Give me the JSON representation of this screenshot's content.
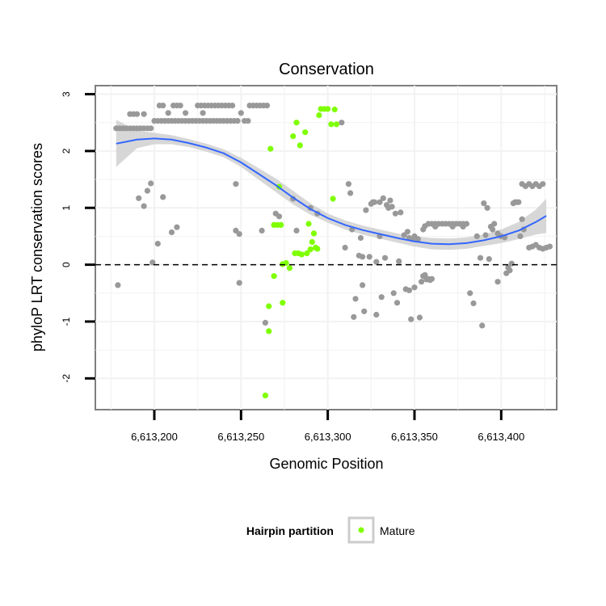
{
  "chart_data": {
    "type": "scatter",
    "title": "Conservation",
    "xlabel": "Genomic Position",
    "ylabel": "phyloP LRT conservation scores",
    "xlim": [
      6613166,
      6613432
    ],
    "ylim": [
      -2.55,
      3.15
    ],
    "x_ticks": [
      6613200,
      6613250,
      6613300,
      6613350,
      6613400
    ],
    "x_tick_labels": [
      "6,613,200",
      "6,613,250",
      "6,613,300",
      "6,613,350",
      "6,613,400"
    ],
    "y_ticks": [
      -2,
      -1,
      0,
      1,
      2,
      3
    ],
    "y_tick_labels": [
      "-2",
      "-1",
      "0",
      "1",
      "2",
      "3"
    ],
    "grid": true,
    "reference_line": {
      "y": 0,
      "style": "dashed",
      "color": "#000000"
    },
    "colors": {
      "other": "#999999",
      "mature": "#7fff00",
      "smooth": "#3366ff",
      "band": "#d3d3d3",
      "panel_border": "#7f7f7f",
      "grid": "#f2f2f2"
    },
    "legend": {
      "title": "Hairpin partition",
      "position": "bottom",
      "entries": [
        {
          "label": "Mature",
          "color": "#7fff00"
        }
      ]
    },
    "smooth": {
      "x": [
        6613178,
        6613190,
        6613200,
        6613210,
        6613220,
        6613230,
        6613240,
        6613250,
        6613260,
        6613270,
        6613280,
        6613290,
        6613300,
        6613310,
        6613320,
        6613330,
        6613340,
        6613350,
        6613360,
        6613370,
        6613380,
        6613390,
        6613400,
        6613410,
        6613420,
        6613426
      ],
      "y": [
        2.13,
        2.2,
        2.22,
        2.2,
        2.14,
        2.06,
        1.96,
        1.8,
        1.6,
        1.4,
        1.18,
        0.98,
        0.82,
        0.7,
        0.61,
        0.54,
        0.47,
        0.41,
        0.37,
        0.36,
        0.38,
        0.43,
        0.5,
        0.6,
        0.75,
        0.86
      ],
      "lower": [
        1.72,
        2.05,
        2.12,
        2.12,
        2.07,
        1.99,
        1.89,
        1.72,
        1.5,
        1.28,
        1.06,
        0.88,
        0.74,
        0.62,
        0.53,
        0.46,
        0.39,
        0.32,
        0.27,
        0.26,
        0.28,
        0.33,
        0.38,
        0.45,
        0.53,
        0.56
      ],
      "upper": [
        2.55,
        2.36,
        2.32,
        2.28,
        2.21,
        2.13,
        2.03,
        1.88,
        1.7,
        1.52,
        1.3,
        1.08,
        0.9,
        0.78,
        0.69,
        0.62,
        0.55,
        0.5,
        0.47,
        0.46,
        0.48,
        0.53,
        0.62,
        0.75,
        0.97,
        1.16
      ]
    },
    "series": [
      {
        "name": "",
        "color": "#999999",
        "points": [
          [
            6613178,
            2.4
          ],
          [
            6613180,
            2.4
          ],
          [
            6613182,
            2.4
          ],
          [
            6613184,
            2.4
          ],
          [
            6613186,
            2.4
          ],
          [
            6613188,
            2.4
          ],
          [
            6613190,
            2.4
          ],
          [
            6613192,
            2.4
          ],
          [
            6613194,
            2.4
          ],
          [
            6613196,
            2.4
          ],
          [
            6613198,
            2.4
          ],
          [
            6613186,
            2.65
          ],
          [
            6613188,
            2.65
          ],
          [
            6613190,
            2.65
          ],
          [
            6613194,
            2.65
          ],
          [
            6613179,
            -0.36
          ],
          [
            6613191,
            1.17
          ],
          [
            6613194,
            1.03
          ],
          [
            6613196,
            1.3
          ],
          [
            6613198,
            1.43
          ],
          [
            6613199,
            0.04
          ],
          [
            6613202,
            0.37
          ],
          [
            6613205,
            1.19
          ],
          [
            6613210,
            0.57
          ],
          [
            6613213,
            0.66
          ],
          [
            6613200,
            2.53
          ],
          [
            6613202,
            2.53
          ],
          [
            6613204,
            2.53
          ],
          [
            6613206,
            2.53
          ],
          [
            6613208,
            2.53
          ],
          [
            6613210,
            2.53
          ],
          [
            6613212,
            2.53
          ],
          [
            6613214,
            2.53
          ],
          [
            6613216,
            2.53
          ],
          [
            6613218,
            2.53
          ],
          [
            6613220,
            2.53
          ],
          [
            6613222,
            2.53
          ],
          [
            6613224,
            2.53
          ],
          [
            6613226,
            2.53
          ],
          [
            6613228,
            2.53
          ],
          [
            6613230,
            2.53
          ],
          [
            6613232,
            2.53
          ],
          [
            6613234,
            2.53
          ],
          [
            6613236,
            2.53
          ],
          [
            6613238,
            2.53
          ],
          [
            6613240,
            2.53
          ],
          [
            6613242,
            2.53
          ],
          [
            6613244,
            2.53
          ],
          [
            6613246,
            2.53
          ],
          [
            6613248,
            2.53
          ],
          [
            6613252,
            2.53
          ],
          [
            6613254,
            2.53
          ],
          [
            6613203,
            2.8
          ],
          [
            6613205,
            2.8
          ],
          [
            6613211,
            2.8
          ],
          [
            6613213,
            2.8
          ],
          [
            6613215,
            2.8
          ],
          [
            6613225,
            2.8
          ],
          [
            6613227,
            2.8
          ],
          [
            6613229,
            2.8
          ],
          [
            6613231,
            2.8
          ],
          [
            6613233,
            2.8
          ],
          [
            6613235,
            2.8
          ],
          [
            6613237,
            2.8
          ],
          [
            6613239,
            2.8
          ],
          [
            6613241,
            2.8
          ],
          [
            6613243,
            2.8
          ],
          [
            6613245,
            2.8
          ],
          [
            6613255,
            2.8
          ],
          [
            6613257,
            2.8
          ],
          [
            6613259,
            2.8
          ],
          [
            6613261,
            2.8
          ],
          [
            6613263,
            2.8
          ],
          [
            6613265,
            2.8
          ],
          [
            6613208,
            2.67
          ],
          [
            6613218,
            2.67
          ],
          [
            6613228,
            2.67
          ],
          [
            6613250,
            2.67
          ],
          [
            6613247,
            1.42
          ],
          [
            6613247,
            0.6
          ],
          [
            6613249,
            0.54
          ],
          [
            6613249,
            -0.32
          ],
          [
            6613262,
            0.6
          ],
          [
            6613264,
            -1.02
          ],
          [
            6613270,
            0.9
          ],
          [
            6613272,
            0.85
          ],
          [
            6613280,
            1.16
          ],
          [
            6613282,
            0.6
          ],
          [
            6613290,
            1.0
          ],
          [
            6613294,
            0.9
          ],
          [
            6613308,
            2.5
          ],
          [
            6613310,
            0.3
          ],
          [
            6613312,
            1.42
          ],
          [
            6613313,
            1.26
          ],
          [
            6613314,
            0.62
          ],
          [
            6613315,
            -0.92
          ],
          [
            6613316,
            -0.6
          ],
          [
            6613318,
            0.16
          ],
          [
            6613319,
            0.47
          ],
          [
            6613320,
            -0.36
          ],
          [
            6613320,
            0.14
          ],
          [
            6613321,
            -0.82
          ],
          [
            6613322,
            0.96
          ],
          [
            6613324,
            0.14
          ],
          [
            6613325,
            1.07
          ],
          [
            6613326,
            1.1
          ],
          [
            6613327,
            1.1
          ],
          [
            6613328,
            -0.88
          ],
          [
            6613328,
            0.05
          ],
          [
            6613330,
            0.5
          ],
          [
            6613330,
            1.1
          ],
          [
            6613331,
            -0.57
          ],
          [
            6613332,
            1.17
          ],
          [
            6613333,
            0.12
          ],
          [
            6613334,
            1.05
          ],
          [
            6613335,
            1.0
          ],
          [
            6613336,
            1.13
          ],
          [
            6613337,
            1.02
          ],
          [
            6613338,
            -0.5
          ],
          [
            6613339,
            0.9
          ],
          [
            6613340,
            -0.67
          ],
          [
            6613341,
            0.06
          ],
          [
            6613342,
            0.92
          ],
          [
            6613344,
            0.52
          ],
          [
            6613345,
            -0.43
          ],
          [
            6613346,
            0.58
          ],
          [
            6613347,
            -0.45
          ],
          [
            6613347,
            0.47
          ],
          [
            6613348,
            -0.96
          ],
          [
            6613349,
            0.45
          ],
          [
            6613350,
            0.5
          ],
          [
            6613350,
            -0.4
          ],
          [
            6613352,
            0.45
          ],
          [
            6613353,
            -0.93
          ],
          [
            6613354,
            -0.3
          ],
          [
            6613355,
            -0.2
          ],
          [
            6613355,
            0.62
          ],
          [
            6613356,
            -0.18
          ],
          [
            6613357,
            -0.26
          ],
          [
            6613358,
            -0.25
          ],
          [
            6613359,
            -0.27
          ],
          [
            6613360,
            -0.25
          ],
          [
            6613356,
            0.68
          ],
          [
            6613358,
            0.72
          ],
          [
            6613360,
            0.72
          ],
          [
            6613362,
            0.72
          ],
          [
            6613364,
            0.72
          ],
          [
            6613366,
            0.72
          ],
          [
            6613368,
            0.72
          ],
          [
            6613370,
            0.72
          ],
          [
            6613372,
            0.72
          ],
          [
            6613374,
            0.72
          ],
          [
            6613376,
            0.72
          ],
          [
            6613378,
            0.72
          ],
          [
            6613380,
            0.72
          ],
          [
            6613362,
            0.67
          ],
          [
            6613372,
            0.67
          ],
          [
            6613378,
            0.67
          ],
          [
            6613382,
            -0.5
          ],
          [
            6613384,
            -0.68
          ],
          [
            6613386,
            0.5
          ],
          [
            6613388,
            0.12
          ],
          [
            6613389,
            -1.07
          ],
          [
            6613390,
            1.08
          ],
          [
            6613391,
            0.52
          ],
          [
            6613392,
            1.0
          ],
          [
            6613393,
            0.1
          ],
          [
            6613394,
            0.67
          ],
          [
            6613395,
            0.62
          ],
          [
            6613396,
            0.72
          ],
          [
            6613398,
            0.55
          ],
          [
            6613398,
            -0.3
          ],
          [
            6613400,
            0.5
          ],
          [
            6613402,
            0.48
          ],
          [
            6613403,
            -0.15
          ],
          [
            6613404,
            -0.05
          ],
          [
            6613405,
            -0.1
          ],
          [
            6613406,
            0.02
          ],
          [
            6613407,
            1.08
          ],
          [
            6613408,
            1.1
          ],
          [
            6613409,
            1.1
          ],
          [
            6613410,
            1.1
          ],
          [
            6613411,
            0.5
          ],
          [
            6613412,
            0.8
          ],
          [
            6613413,
            0.62
          ],
          [
            6613412,
            1.42
          ],
          [
            6613414,
            1.38
          ],
          [
            6613416,
            1.42
          ],
          [
            6613418,
            1.38
          ],
          [
            6613420,
            1.42
          ],
          [
            6613422,
            1.38
          ],
          [
            6613424,
            1.42
          ],
          [
            6613416,
            0.3
          ],
          [
            6613418,
            0.32
          ],
          [
            6613420,
            0.35
          ],
          [
            6613422,
            0.3
          ],
          [
            6613424,
            0.28
          ],
          [
            6613426,
            0.3
          ],
          [
            6613428,
            0.32
          ]
        ]
      },
      {
        "name": "Mature",
        "color": "#7fff00",
        "points": [
          [
            6613264,
            -2.3
          ],
          [
            6613266,
            -0.73
          ],
          [
            6613266,
            -1.17
          ],
          [
            6613267,
            2.04
          ],
          [
            6613269,
            0.7
          ],
          [
            6613269,
            -0.2
          ],
          [
            6613271,
            0.7
          ],
          [
            6613272,
            1.37
          ],
          [
            6613273,
            0.7
          ],
          [
            6613274,
            -0.67
          ],
          [
            6613274,
            0.01
          ],
          [
            6613276,
            0.03
          ],
          [
            6613278,
            -0.06
          ],
          [
            6613280,
            2.26
          ],
          [
            6613281,
            0.2
          ],
          [
            6613282,
            2.5
          ],
          [
            6613283,
            0.2
          ],
          [
            6613284,
            2.1
          ],
          [
            6613285,
            0.18
          ],
          [
            6613287,
            2.33
          ],
          [
            6613288,
            0.2
          ],
          [
            6613289,
            0.72
          ],
          [
            6613290,
            0.27
          ],
          [
            6613291,
            0.4
          ],
          [
            6613292,
            0.55
          ],
          [
            6613293,
            0.3
          ],
          [
            6613294,
            0.28
          ],
          [
            6613295,
            2.63
          ],
          [
            6613296,
            2.74
          ],
          [
            6613298,
            2.74
          ],
          [
            6613300,
            2.74
          ],
          [
            6613302,
            2.47
          ],
          [
            6613304,
            2.73
          ],
          [
            6613305,
            2.47
          ],
          [
            6613303,
            1.16
          ]
        ]
      }
    ]
  }
}
